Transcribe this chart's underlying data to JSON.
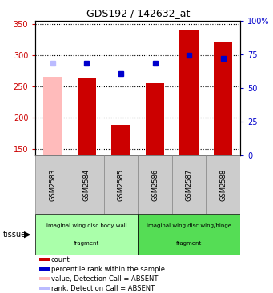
{
  "title": "GDS192 / 142632_at",
  "samples": [
    "GSM2583",
    "GSM2584",
    "GSM2585",
    "GSM2586",
    "GSM2587",
    "GSM2588"
  ],
  "count_values": [
    265,
    263,
    188,
    255,
    340,
    320
  ],
  "rank_values": [
    287,
    287,
    270,
    287,
    300,
    295
  ],
  "absent_flags": [
    true,
    false,
    false,
    false,
    false,
    false
  ],
  "rank_absent_flags": [
    true,
    false,
    false,
    false,
    false,
    false
  ],
  "ylim_left": [
    140,
    355
  ],
  "ylim_right": [
    0,
    100
  ],
  "bar_width": 0.55,
  "count_color": "#cc0000",
  "count_absent_color": "#ffbbbb",
  "rank_color": "#0000cc",
  "rank_absent_color": "#bbbbff",
  "dotted_lines_left": [
    150,
    200,
    250,
    300,
    350
  ],
  "tissue_groups": [
    {
      "label_top": "imaginal wing disc body wall",
      "label_bot": "fragment",
      "start": 0,
      "end": 3,
      "color": "#aaffaa"
    },
    {
      "label_top": "imaginal wing disc wing/hinge",
      "label_bot": "fragment",
      "start": 3,
      "end": 6,
      "color": "#55dd55"
    }
  ],
  "tissue_label": "tissue",
  "legend_items": [
    {
      "label": "count",
      "color": "#cc0000"
    },
    {
      "label": "percentile rank within the sample",
      "color": "#0000cc"
    },
    {
      "label": "value, Detection Call = ABSENT",
      "color": "#ffbbbb"
    },
    {
      "label": "rank, Detection Call = ABSENT",
      "color": "#bbbbff"
    }
  ],
  "left_yticks": [
    150,
    200,
    250,
    300,
    350
  ],
  "right_ytick_labels": [
    "0",
    "25",
    "50",
    "75",
    "100%"
  ],
  "right_ytick_vals": [
    0,
    25,
    50,
    75,
    100
  ],
  "figsize": [
    3.41,
    3.66
  ],
  "dpi": 100,
  "sample_box_color": "#cccccc",
  "sample_box_edge": "#888888"
}
